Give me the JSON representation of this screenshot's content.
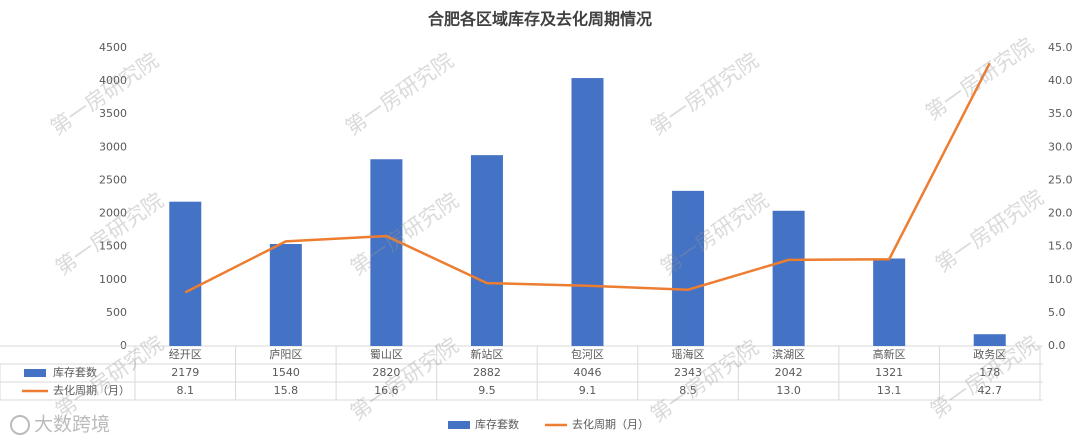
{
  "chart_data": {
    "type": "bar-line",
    "title": "合肥各区域库存及去化周期情况",
    "categories": [
      "经开区",
      "庐阳区",
      "蜀山区",
      "新站区",
      "包河区",
      "瑶海区",
      "滨湖区",
      "高新区",
      "政务区"
    ],
    "series": [
      {
        "name": "库存套数",
        "color": "#4472c4",
        "type": "bar",
        "values": [
          2179,
          1540,
          2820,
          2882,
          4046,
          2343,
          2042,
          1321,
          178
        ]
      },
      {
        "name": "去化周期（月）",
        "color": "#ed7d31",
        "type": "line",
        "axis": "y2",
        "values": [
          8.1,
          15.8,
          16.6,
          9.5,
          9.1,
          8.5,
          13.0,
          13.1,
          42.7
        ],
        "value_labels": [
          "8.1",
          "15.8",
          "16.6",
          "9.5",
          "9.1",
          "8.5",
          "13.0",
          "13.1",
          "42.7"
        ]
      }
    ],
    "ylim": [
      0,
      4500
    ],
    "yticks": [
      0,
      500,
      1000,
      1500,
      2000,
      2500,
      3000,
      3500,
      4000,
      4500
    ],
    "y2lim": [
      0,
      45
    ],
    "y2ticks": [
      {
        "value": 0,
        "label": "0.0"
      },
      {
        "value": 5,
        "label": "5.0"
      },
      {
        "value": 10,
        "label": "10.0"
      },
      {
        "value": 15,
        "label": "15.0"
      },
      {
        "value": 20,
        "label": "20.0"
      },
      {
        "value": 25,
        "label": "25.0"
      },
      {
        "value": 30,
        "label": "30.0"
      },
      {
        "value": 35,
        "label": "35.0"
      },
      {
        "value": 40,
        "label": "40.0"
      },
      {
        "value": 45,
        "label": "45.0"
      }
    ],
    "grid": false,
    "watermark": "第一房研究院",
    "logo": "大数跨境"
  }
}
